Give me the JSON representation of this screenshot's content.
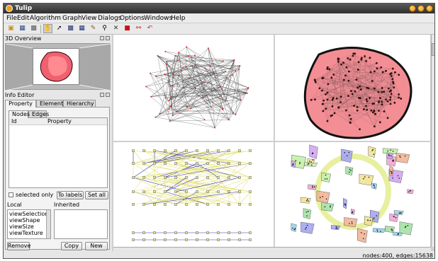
{
  "title": "Tulip",
  "menus": [
    "File",
    "Edit",
    "Algorithm",
    "Graph",
    "View",
    "Dialogs",
    "Options",
    "Windows",
    "Help"
  ],
  "toolbar_icons": [
    "open-icon",
    "save-icon",
    "print-icon",
    "hand-icon",
    "pointer-icon",
    "select-icon",
    "grid-icon",
    "pencil-icon",
    "magnifier-icon",
    "delete-icon",
    "red-cube-icon",
    "graph-icon",
    "undo-icon"
  ],
  "overview": {
    "title": "3D Overview"
  },
  "info_editor": {
    "title": "Info Editor",
    "tabs": [
      "Property",
      "Element",
      "Hierarchy"
    ],
    "subtabs": [
      "Nodes",
      "Edges"
    ],
    "columns": [
      "Id",
      "Property"
    ],
    "selected_only": "selected only",
    "to_labels": "To labels",
    "set_all": "Set all",
    "local": "Local",
    "inherited": "Inherited",
    "local_items": [
      "viewSelection",
      "viewShape",
      "viewSize",
      "viewTexture"
    ],
    "remove": "Remove",
    "copy": "Copy",
    "new": "New"
  },
  "status": "nodes:400, edges:15638",
  "colors": {
    "node_red": "#d8282c",
    "edge_dark": "#202020",
    "pink": "#f28e94",
    "yellow_edge": "#e3e07a",
    "blue_edge": "#3535b0",
    "node_box": "#e8e890"
  }
}
